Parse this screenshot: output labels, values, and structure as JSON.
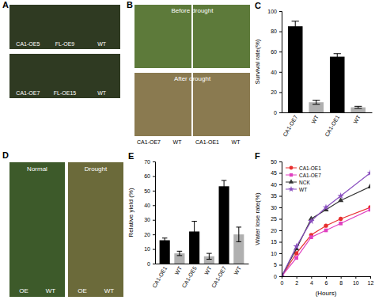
{
  "chart_data": [
    {
      "type": "bar",
      "title": "C",
      "ylabel": "Survival rate(%)",
      "categories": [
        "CA1-OE7",
        "WT",
        "CA1-OE1",
        "WT"
      ],
      "values": [
        85,
        10,
        55,
        5
      ],
      "errors": [
        5,
        2,
        3,
        1
      ],
      "colors": [
        "#000000",
        "#b0b0b0",
        "#000000",
        "#b0b0b0"
      ],
      "ylim": [
        0,
        100
      ],
      "yticks": [
        0,
        20,
        40,
        60,
        80,
        100
      ],
      "grid": false
    },
    {
      "type": "bar",
      "title": "E",
      "ylabel": "Relative yield (%)",
      "categories": [
        "CA1-OE1",
        "WT",
        "CA1-OE5",
        "WT",
        "CA1-OE7",
        "WT"
      ],
      "values": [
        16,
        7,
        22,
        5,
        53,
        20
      ],
      "errors": [
        1.5,
        1.5,
        7,
        2,
        4,
        5
      ],
      "colors": [
        "#000000",
        "#b0b0b0",
        "#000000",
        "#b0b0b0",
        "#000000",
        "#b0b0b0"
      ],
      "ylim": [
        0,
        70
      ],
      "yticks": [
        0,
        10,
        20,
        30,
        40,
        50,
        60,
        70
      ],
      "grid": false
    },
    {
      "type": "line",
      "title": "F",
      "ylabel": "Water lose rate(%)",
      "xlabel": "(Hours)",
      "x": [
        0,
        2,
        4,
        6,
        8,
        12
      ],
      "series": [
        {
          "name": "CA1-OE1",
          "color": "#e8302f",
          "marker": "circle",
          "values": [
            0,
            10,
            18,
            22,
            25,
            30
          ]
        },
        {
          "name": "CA1-OE7",
          "color": "#e040c0",
          "marker": "square",
          "values": [
            0,
            8,
            17,
            20,
            23,
            29
          ]
        },
        {
          "name": "NCK",
          "color": "#333333",
          "marker": "triangle",
          "values": [
            0,
            12,
            25,
            29,
            33,
            39
          ]
        },
        {
          "name": "WT",
          "color": "#8a4fbf",
          "marker": "star",
          "values": [
            0,
            13,
            24,
            30,
            35,
            45
          ]
        }
      ],
      "xlim": [
        0,
        12
      ],
      "xticks": [
        0,
        2,
        4,
        6,
        8,
        10,
        12
      ],
      "ylim": [
        0,
        50
      ],
      "yticks": [
        0,
        5,
        10,
        15,
        20,
        25,
        30,
        35,
        40,
        45,
        50
      ],
      "legend": "top-left",
      "grid": false
    }
  ],
  "panels": [
    {
      "label": "A",
      "images": [
        {
          "labels": [
            "CA1-OE5",
            "FL-OE9",
            "WT"
          ]
        },
        {
          "labels": [
            "CA1-OE7",
            "FL-OE15",
            "WT"
          ]
        }
      ]
    },
    {
      "label": "B",
      "captions": [
        "Before drought",
        "After drought"
      ],
      "groups": [
        {
          "labels": [
            "CA1-OE7",
            "WT"
          ]
        },
        {
          "labels": [
            "CA1-OE1",
            "WT"
          ]
        }
      ]
    },
    {
      "label": "D",
      "images": [
        {
          "caption": "Normal",
          "labels": [
            "OE",
            "WT"
          ]
        },
        {
          "caption": "Drought",
          "labels": [
            "OE",
            "WT"
          ]
        }
      ]
    }
  ]
}
